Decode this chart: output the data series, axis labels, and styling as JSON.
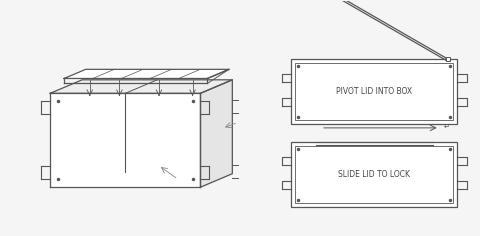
{
  "bg_color": "#f5f5f5",
  "line_color": "#555555",
  "text_color": "#444444",
  "label_color": "#888888",
  "label1": "PIVOT LID INTO BOX",
  "label2": "SLIDE LID TO LOCK",
  "figsize": [
    4.8,
    2.36
  ],
  "dpi": 100
}
